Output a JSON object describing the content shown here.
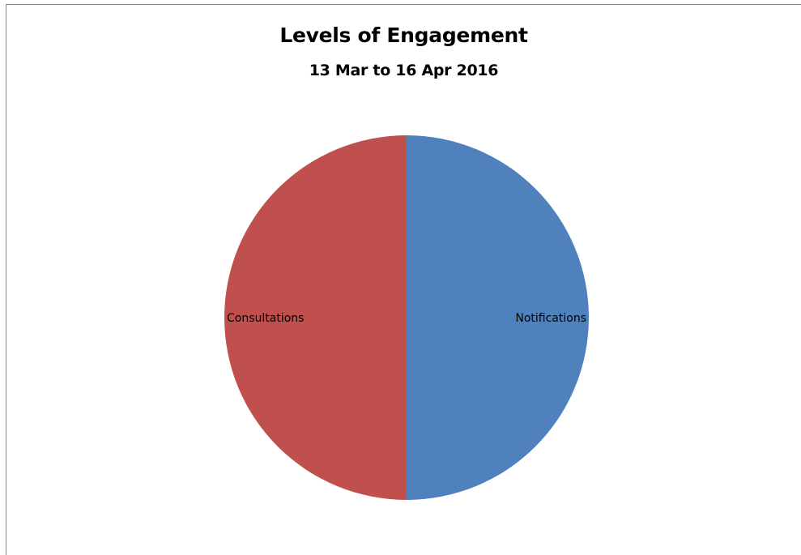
{
  "chart_data": {
    "type": "pie",
    "title": "Levels of Engagement",
    "subtitle": "13 Mar to 16 Apr 2016",
    "categories": [
      "Notifications",
      "Consultations"
    ],
    "values": [
      50,
      50
    ],
    "colors": [
      "#4f81bd",
      "#c0504d"
    ],
    "start_angle_deg": 0,
    "direction": "clockwise",
    "legend": "none",
    "data_labels": "category-name-inside"
  }
}
